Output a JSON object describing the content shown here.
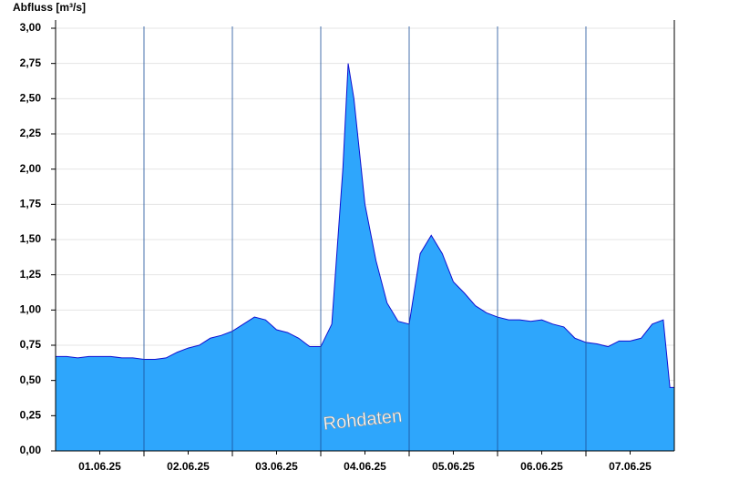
{
  "chart_data": {
    "type": "area",
    "ylabel": "Abfluss [m³/s]",
    "annotation": "Rohdaten",
    "color": "#2ea6fc",
    "line_color": "#1010d0",
    "grid": true,
    "x": [
      0,
      0.125,
      0.25,
      0.375,
      0.5,
      0.625,
      0.75,
      0.875,
      1,
      1.125,
      1.25,
      1.375,
      1.5,
      1.625,
      1.75,
      1.875,
      2,
      2.125,
      2.25,
      2.375,
      2.5,
      2.625,
      2.75,
      2.875,
      3,
      3.125,
      3.25,
      3.31,
      3.375,
      3.5,
      3.625,
      3.75,
      3.875,
      4,
      4.125,
      4.25,
      4.375,
      4.5,
      4.625,
      4.75,
      4.875,
      5,
      5.125,
      5.25,
      5.375,
      5.5,
      5.625,
      5.75,
      5.875,
      6,
      6.125,
      6.25,
      6.375,
      6.5,
      6.625,
      6.75,
      6.875,
      6.95,
      7
    ],
    "values": [
      0.67,
      0.67,
      0.66,
      0.67,
      0.67,
      0.67,
      0.66,
      0.66,
      0.65,
      0.65,
      0.66,
      0.7,
      0.73,
      0.75,
      0.8,
      0.82,
      0.85,
      0.9,
      0.95,
      0.93,
      0.86,
      0.84,
      0.8,
      0.74,
      0.74,
      0.9,
      2.0,
      2.75,
      2.5,
      1.75,
      1.35,
      1.05,
      0.92,
      0.9,
      1.4,
      1.53,
      1.4,
      1.2,
      1.12,
      1.03,
      0.98,
      0.95,
      0.93,
      0.93,
      0.92,
      0.93,
      0.9,
      0.88,
      0.8,
      0.77,
      0.76,
      0.74,
      0.78,
      0.78,
      0.8,
      0.9,
      0.93,
      0.45,
      0.45
    ],
    "xlim": [
      0,
      7
    ],
    "xticks": [
      {
        "value": 0.5,
        "label": "01.06.25"
      },
      {
        "value": 1.5,
        "label": "02.06.25"
      },
      {
        "value": 2.5,
        "label": "03.06.25"
      },
      {
        "value": 3.5,
        "label": "04.06.25"
      },
      {
        "value": 4.5,
        "label": "05.06.25"
      },
      {
        "value": 5.5,
        "label": "06.06.25"
      },
      {
        "value": 6.5,
        "label": "07.06.25"
      }
    ],
    "ylim": [
      0,
      3
    ],
    "yticks": [
      {
        "value": 0,
        "label": "0,00"
      },
      {
        "value": 0.25,
        "label": "0,25"
      },
      {
        "value": 0.5,
        "label": "0,50"
      },
      {
        "value": 0.75,
        "label": "0,75"
      },
      {
        "value": 1,
        "label": "1,00"
      },
      {
        "value": 1.25,
        "label": "1,25"
      },
      {
        "value": 1.5,
        "label": "1,50"
      },
      {
        "value": 1.75,
        "label": "1,75"
      },
      {
        "value": 2,
        "label": "2,00"
      },
      {
        "value": 2.25,
        "label": "2,25"
      },
      {
        "value": 2.5,
        "label": "2,50"
      },
      {
        "value": 2.75,
        "label": "2,75"
      },
      {
        "value": 3,
        "label": "3,00"
      }
    ]
  }
}
